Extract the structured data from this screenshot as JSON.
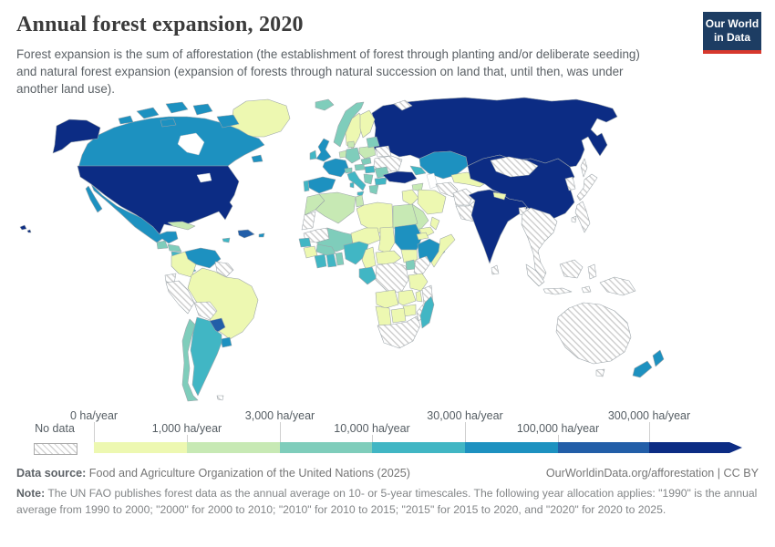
{
  "header": {
    "title": "Annual forest expansion, 2020",
    "subtitle": "Forest expansion is the sum of afforestation (the establishment of forest through planting and/or deliberate seeding) and natural forest expansion (expansion of forests through natural succession on land that, until then, was under another land use)."
  },
  "logo": {
    "line1": "Our World",
    "line2": "in Data",
    "background": "#1d3d63",
    "accent": "#d7382d"
  },
  "chart_data": {
    "type": "heatmap",
    "subtype": "choropleth-world-map",
    "title": "Annual forest expansion, 2020",
    "unit": "ha/year",
    "legend": {
      "position": "bottom",
      "no_data_label": "No data",
      "tick_labels": [
        "0 ha/year",
        "1,000 ha/year",
        "3,000 ha/year",
        "10,000 ha/year",
        "30,000 ha/year",
        "100,000 ha/year",
        "300,000 ha/year"
      ],
      "bin_edges_ha_per_year": [
        0,
        1000,
        3000,
        10000,
        30000,
        100000,
        300000
      ],
      "colors": [
        "#edf8b1",
        "#c7e9b4",
        "#7fcdbb",
        "#41b6c4",
        "#1d91c0",
        "#225ea8",
        "#0c2c84"
      ],
      "arrow_color": "#0c2c84",
      "no_data_pattern": "diagonal-hatch"
    },
    "encoding": "region values are bin indices into legend.colors (0 = 0-1,000 ha/year ... 6 = over 300,000 ha/year); -1 = no data (hatched)",
    "regions": {
      "greenland": 0,
      "canada": 4,
      "alaska": 6,
      "usa": 6,
      "mexico": 4,
      "cuba": 1,
      "hispaniola": 5,
      "jamaica": 3,
      "puerto-rico": 4,
      "guatemala": 2,
      "honduras": 2,
      "nicaragua": 3,
      "costa-rica-panama": 3,
      "colombia": 0,
      "venezuela": 4,
      "guyanas": -1,
      "ecuador": -1,
      "peru": -1,
      "brazil": 0,
      "bolivia": -1,
      "paraguay": 5,
      "uruguay": 4,
      "argentina": 3,
      "chile": 2,
      "falkland-islands": -1,
      "iceland": 2,
      "norway": 2,
      "sweden": 0,
      "finland": 0,
      "denmark": 1,
      "united-kingdom": 4,
      "ireland": 3,
      "benelux": 1,
      "germany": 2,
      "poland": 1,
      "baltic-states": 2,
      "belarus": -1,
      "ukraine": -1,
      "france": 4,
      "spain": 4,
      "portugal": 3,
      "switzerland": 2,
      "italy": 3,
      "czechia": 2,
      "austria": 2,
      "hungary": 3,
      "romania": 2,
      "balkans": 2,
      "bulgaria": 3,
      "greece": 2,
      "russia": 6,
      "novaya-zemlya": -1,
      "kazakhstan": 4,
      "caucasus": 3,
      "turkey": 6,
      "syria": 1,
      "iraq": 0,
      "iran": 0,
      "saudi-arabia": 1,
      "yemen": 0,
      "oman": 0,
      "turkmenistan": -1,
      "uzbekistan": 0,
      "afghanistan": -1,
      "pakistan": -1,
      "india": 6,
      "nepal": 0,
      "bangladesh": -1,
      "sri-lanka": -1,
      "china": 6,
      "mongolia": -1,
      "korea": -1,
      "japan": -1,
      "sakhalin": -1,
      "taiwan": -1,
      "mainland-southeast-asia": -1,
      "philippines": -1,
      "sumatra": -1,
      "java": -1,
      "borneo": -1,
      "sulawesi": -1,
      "timor": -1,
      "new-guinea": -1,
      "australia": -1,
      "tasmania": -1,
      "new-zealand": 4,
      "morocco": 1,
      "algeria": 1,
      "tunisia": 1,
      "libya": 0,
      "egypt": 1,
      "western-sahara": -1,
      "mauritania": -1,
      "mali": 2,
      "niger": 0,
      "chad": 0,
      "sudan": 4,
      "eritrea": 0,
      "south-sudan": 0,
      "ethiopia": 4,
      "somalia": 0,
      "senegal": 3,
      "guinea": 0,
      "ivory-coast": 3,
      "ghana": 3,
      "burkina-faso": 2,
      "togo-benin": 2,
      "nigeria": 3,
      "cameroon": 0,
      "central-african-republic": 0,
      "gabon-congo": 3,
      "democratic-republic-of-congo": -1,
      "uganda": 2,
      "kenya": -1,
      "tanzania": 0,
      "angola": 0,
      "zambia": 0,
      "malawi": 0,
      "mozambique": -1,
      "zimbabwe": 0,
      "namibia": 0,
      "botswana": 0,
      "south-africa": -1,
      "madagascar": 3
    }
  },
  "footer": {
    "data_source_label": "Data source:",
    "data_source": "Food and Agriculture Organization of the United Nations (2025)",
    "link": "OurWorldinData.org/afforestation",
    "divider": "|",
    "license": "CC BY",
    "note_label": "Note:",
    "note": "The UN FAO publishes forest data as the annual average on 10- or 5-year timescales. The following year allocation applies: \"1990\" is the annual average from 1990 to 2000; \"2000\" for 2000 to 2010; \"2010\" for 2010 to 2015; \"2015\" for 2015 to 2020, and \"2020\" for 2020 to 2025."
  }
}
